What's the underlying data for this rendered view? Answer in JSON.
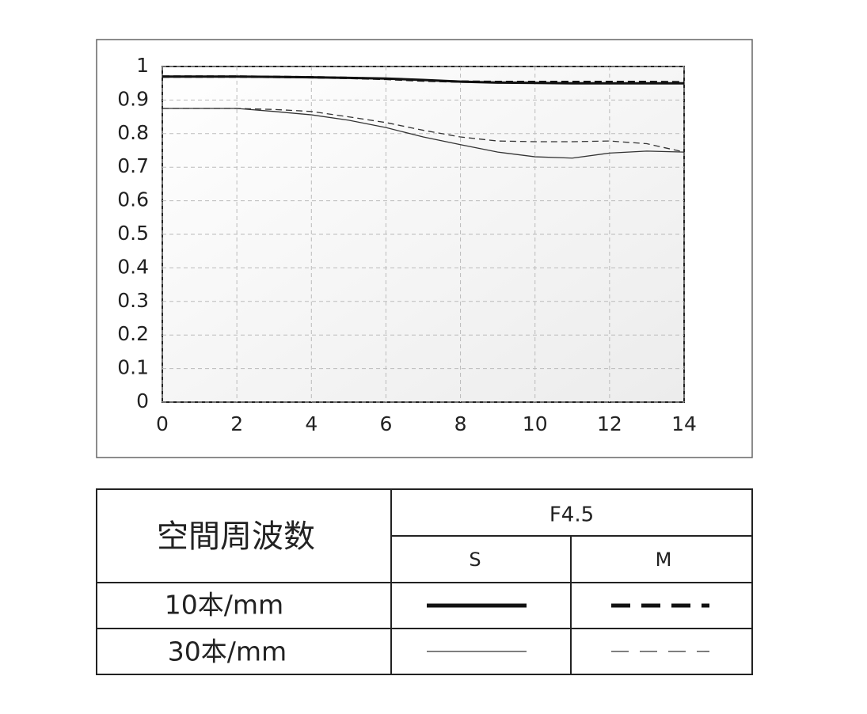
{
  "chart_data": {
    "type": "line",
    "x": [
      0,
      1,
      2,
      3,
      4,
      5,
      6,
      7,
      8,
      9,
      10,
      11,
      12,
      13,
      14
    ],
    "xlim": [
      0,
      14
    ],
    "xticks": [
      0,
      2,
      4,
      6,
      8,
      10,
      12,
      14
    ],
    "ylim": [
      0,
      1
    ],
    "yticks": [
      0,
      0.1,
      0.2,
      0.3,
      0.4,
      0.5,
      0.6,
      0.7,
      0.8,
      0.9,
      1
    ],
    "grid": true,
    "series": [
      {
        "color": "#111111",
        "weight": "bold",
        "dash": "solid",
        "values": [
          0.97,
          0.97,
          0.97,
          0.969,
          0.968,
          0.966,
          0.964,
          0.96,
          0.955,
          0.952,
          0.951,
          0.95,
          0.95,
          0.95,
          0.95
        ]
      },
      {
        "color": "#111111",
        "weight": "bold",
        "dash": "dashed",
        "values": [
          0.97,
          0.97,
          0.97,
          0.969,
          0.968,
          0.966,
          0.963,
          0.958,
          0.955,
          0.954,
          0.954,
          0.954,
          0.954,
          0.954,
          0.953
        ]
      },
      {
        "color": "#333333",
        "weight": "thin",
        "dash": "solid",
        "values": [
          0.875,
          0.875,
          0.875,
          0.866,
          0.856,
          0.84,
          0.818,
          0.79,
          0.767,
          0.745,
          0.731,
          0.727,
          0.742,
          0.748,
          0.745
        ]
      },
      {
        "color": "#333333",
        "weight": "thin",
        "dash": "dashed",
        "values": [
          0.875,
          0.875,
          0.875,
          0.872,
          0.866,
          0.85,
          0.833,
          0.81,
          0.79,
          0.778,
          0.776,
          0.776,
          0.778,
          0.77,
          0.745
        ]
      }
    ]
  },
  "table": {
    "header": "空間周波数",
    "aperture": "F4.5",
    "columns": [
      "S",
      "M"
    ],
    "rows": [
      "10本/mm",
      "30本/mm"
    ]
  }
}
